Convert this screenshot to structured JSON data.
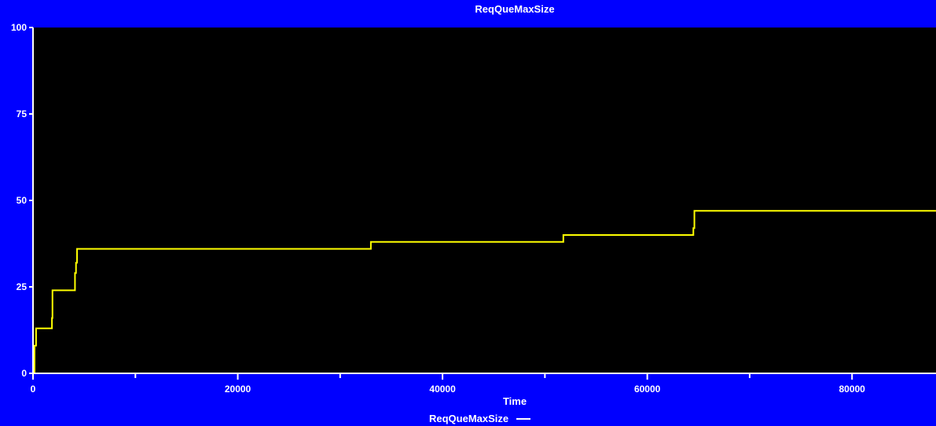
{
  "chart_data": {
    "type": "line",
    "title": "ReqQueMaxSize",
    "xlabel": "Time",
    "ylabel": "",
    "xlim": [
      0,
      88200
    ],
    "ylim": [
      0,
      100
    ],
    "x_ticks": [
      0,
      20000,
      40000,
      60000,
      80000
    ],
    "y_ticks": [
      0,
      25,
      50,
      75,
      100
    ],
    "step": true,
    "grid": false,
    "legend_position": "bottom-center",
    "colors": {
      "background": "#0000ff",
      "plot_area": "#000000",
      "axis": "#ffffff",
      "line": "#ffff00"
    },
    "series": [
      {
        "name": "ReqQueMaxSize",
        "x": [
          0,
          150,
          300,
          1800,
          1850,
          1900,
          4000,
          4100,
          4200,
          4300,
          33000,
          51800,
          64500,
          64600,
          88200
        ],
        "y": [
          0,
          8,
          13,
          13,
          16,
          24,
          24,
          29,
          32,
          36,
          38,
          40,
          42,
          47,
          47
        ]
      }
    ]
  }
}
